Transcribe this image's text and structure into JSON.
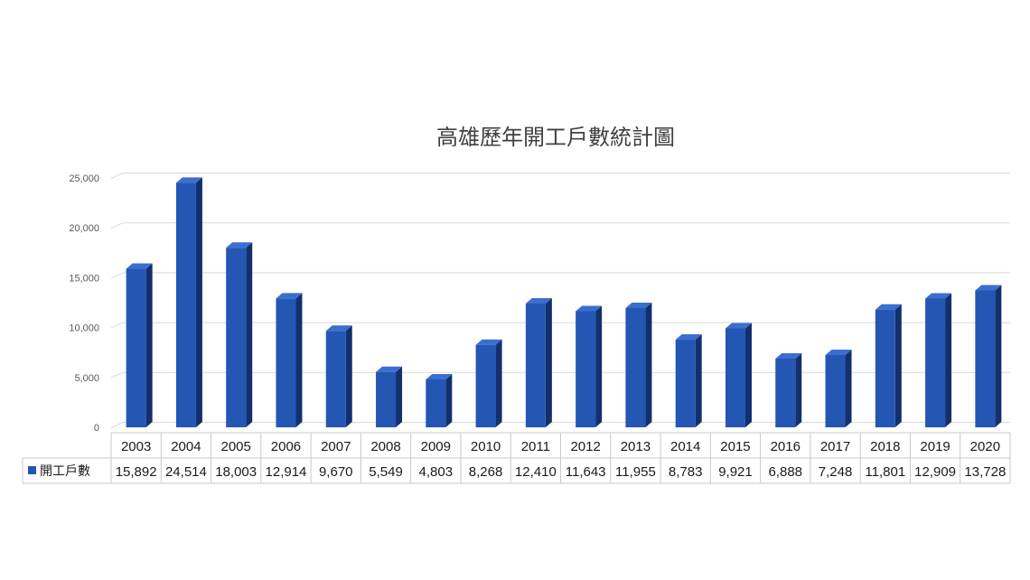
{
  "chart_data": {
    "type": "bar",
    "title": "高雄歷年開工戶數統計圖",
    "categories": [
      "2003",
      "2004",
      "2005",
      "2006",
      "2007",
      "2008",
      "2009",
      "2010",
      "2011",
      "2012",
      "2013",
      "2014",
      "2015",
      "2016",
      "2017",
      "2018",
      "2019",
      "2020"
    ],
    "series": [
      {
        "name": "開工戶數",
        "values": [
          15892,
          24514,
          18003,
          12914,
          9670,
          5549,
          4803,
          8268,
          12410,
          11643,
          11955,
          8783,
          9921,
          6888,
          7248,
          11801,
          12909,
          13728
        ],
        "display_values": [
          "15,892",
          "24,514",
          "18,003",
          "12,914",
          "9,670",
          "5,549",
          "4,803",
          "8,268",
          "12,410",
          "11,643",
          "11,955",
          "8,783",
          "9,921",
          "6,888",
          "7,248",
          "11,801",
          "12,909",
          "13,728"
        ]
      }
    ],
    "y_ticks": [
      "0",
      "5,000",
      "10,000",
      "15,000",
      "20,000",
      "25,000"
    ],
    "ylim": [
      0,
      25000
    ],
    "grid": true,
    "legend_position": "data-table",
    "colors": {
      "bar_front": "#2456b4",
      "bar_side": "#12306e",
      "bar_top": "#3a6fd0",
      "grid": "#d9d9d9"
    }
  }
}
